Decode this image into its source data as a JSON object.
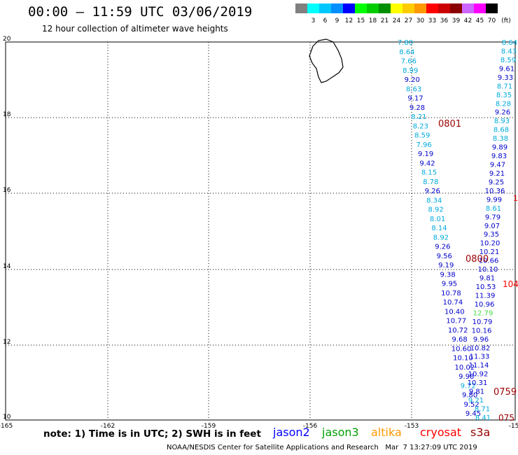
{
  "header": {
    "title": "00:00 – 11:59 UTC 03/06/2019",
    "subtitle": "12 hour collection of altimeter wave heights"
  },
  "colorbar": {
    "unit": "(ft)",
    "bins": [
      {
        "color": "#808080",
        "label": ""
      },
      {
        "color": "#00ffff",
        "label": "3"
      },
      {
        "color": "#00c8ff",
        "label": "6"
      },
      {
        "color": "#0090ff",
        "label": "9"
      },
      {
        "color": "#0000ff",
        "label": "12"
      },
      {
        "color": "#00ff00",
        "label": "15"
      },
      {
        "color": "#00cc00",
        "label": "18"
      },
      {
        "color": "#008f00",
        "label": "21"
      },
      {
        "color": "#ffff00",
        "label": "24"
      },
      {
        "color": "#ffcc00",
        "label": "27"
      },
      {
        "color": "#ff9900",
        "label": "30"
      },
      {
        "color": "#ff0000",
        "label": "33"
      },
      {
        "color": "#cc0000",
        "label": "36"
      },
      {
        "color": "#8b0000",
        "label": "39"
      },
      {
        "color": "#cc66ff",
        "label": "42"
      },
      {
        "color": "#ff00ff",
        "label": "45"
      },
      {
        "color": "#000000",
        "label": "70"
      }
    ]
  },
  "map": {
    "x_ticks": [
      "-165",
      "-162",
      "-159",
      "-156",
      "-153",
      "-15"
    ],
    "y_ticks": [
      "20",
      "18",
      "16",
      "14",
      "12",
      "10"
    ],
    "tracks": {
      "left": {
        "color_key": "jason2",
        "points": [
          [
            "7.80",
            "#00aadd"
          ],
          [
            "8.64",
            "#00aadd"
          ],
          [
            "7.66",
            "#00aadd"
          ],
          [
            "8.99",
            "#00aadd"
          ],
          [
            "9.20",
            "#0000cc"
          ],
          [
            "8.63",
            "#00aadd"
          ],
          [
            "9.17",
            "#0000cc"
          ],
          [
            "9.28",
            "#0000cc"
          ],
          [
            "8.21",
            "#00aadd"
          ],
          [
            "8.23",
            "#00aadd"
          ],
          [
            "8.59",
            "#00aadd"
          ],
          [
            "7.96",
            "#00aadd"
          ],
          [
            "9.19",
            "#0000cc"
          ],
          [
            "9.42",
            "#0000cc"
          ],
          [
            "8.15",
            "#00aadd"
          ],
          [
            "8.78",
            "#00aadd"
          ],
          [
            "9.26",
            "#0000cc"
          ],
          [
            "8.34",
            "#00aadd"
          ],
          [
            "8.92",
            "#00aadd"
          ],
          [
            "8.01",
            "#00aadd"
          ],
          [
            "8.14",
            "#00aadd"
          ],
          [
            "8.92",
            "#00aadd"
          ],
          [
            "9.26",
            "#0000cc"
          ],
          [
            "9.56",
            "#0000cc"
          ],
          [
            "9.19",
            "#0000cc"
          ],
          [
            "9.38",
            "#0000cc"
          ],
          [
            "9.95",
            "#0000cc"
          ],
          [
            "10.78",
            "#0000cc"
          ],
          [
            "10.74",
            "#0000cc"
          ],
          [
            "10.40",
            "#0000cc"
          ],
          [
            "10.77",
            "#0000cc"
          ],
          [
            "10.72",
            "#0000cc"
          ],
          [
            "9.68",
            "#0000cc"
          ],
          [
            "10.60",
            "#0000cc"
          ],
          [
            "10.10",
            "#0000cc"
          ],
          [
            "10.02",
            "#0000cc"
          ],
          [
            "9.98",
            "#0000cc"
          ],
          [
            "9.72",
            "#00aadd"
          ],
          [
            "9.80",
            "#0000cc"
          ],
          [
            "9.52",
            "#0000cc"
          ],
          [
            "9.45",
            "#0000cc"
          ]
        ]
      },
      "right": {
        "color_key": "jason2",
        "points": [
          [
            "8.64",
            "#00aadd"
          ],
          [
            "8.43",
            "#00aadd"
          ],
          [
            "8.59",
            "#00aadd"
          ],
          [
            "9.61",
            "#0000cc"
          ],
          [
            "9.33",
            "#0000cc"
          ],
          [
            "8.71",
            "#00aadd"
          ],
          [
            "8.35",
            "#00aadd"
          ],
          [
            "8.28",
            "#00aadd"
          ],
          [
            "9.26",
            "#0000cc"
          ],
          [
            "8.93",
            "#00aadd"
          ],
          [
            "8.68",
            "#00aadd"
          ],
          [
            "8.38",
            "#00aadd"
          ],
          [
            "9.89",
            "#0000cc"
          ],
          [
            "9.83",
            "#0000cc"
          ],
          [
            "9.47",
            "#0000cc"
          ],
          [
            "9.21",
            "#0000cc"
          ],
          [
            "9.25",
            "#0000cc"
          ],
          [
            "10.36",
            "#0000cc"
          ],
          [
            "9.99",
            "#0000cc"
          ],
          [
            "8.61",
            "#00aadd"
          ],
          [
            "9.79",
            "#0000cc"
          ],
          [
            "9.07",
            "#0000cc"
          ],
          [
            "9.35",
            "#0000cc"
          ],
          [
            "10.20",
            "#0000cc"
          ],
          [
            "10.21",
            "#0000cc"
          ],
          [
            "10.66",
            "#0000cc"
          ],
          [
            "10.10",
            "#0000cc"
          ],
          [
            "9.81",
            "#0000cc"
          ],
          [
            "10.53",
            "#0000cc"
          ],
          [
            "11.39",
            "#0000cc"
          ],
          [
            "10.96",
            "#0000cc"
          ],
          [
            "12.79",
            "#44dd44"
          ],
          [
            "10.79",
            "#0000cc"
          ],
          [
            "10.16",
            "#0000cc"
          ],
          [
            "9.96",
            "#0000cc"
          ],
          [
            "10.82",
            "#0000cc"
          ],
          [
            "11.33",
            "#0000cc"
          ],
          [
            "11.14",
            "#0000cc"
          ],
          [
            "10.92",
            "#0000cc"
          ],
          [
            "10.31",
            "#0000cc"
          ],
          [
            "9.81",
            "#0000cc"
          ],
          [
            "9.21",
            "#00aadd"
          ],
          [
            "8.71",
            "#00aadd"
          ],
          [
            "8.41",
            "#00aadd"
          ]
        ]
      }
    },
    "time_labels": [
      "0801",
      "0800",
      "0759",
      "075"
    ],
    "edge_labels": [
      "1",
      "104"
    ]
  },
  "footer": {
    "note": "note: 1) Time is in UTC; 2) SWH is in feet",
    "missions": [
      "jason2",
      "jason3",
      "altika",
      "cryosat",
      "s3a"
    ],
    "credit": "NOAA/NESDIS Center for Satellite Applications and Research   Mar  7 13:27:09 UTC 2019"
  }
}
